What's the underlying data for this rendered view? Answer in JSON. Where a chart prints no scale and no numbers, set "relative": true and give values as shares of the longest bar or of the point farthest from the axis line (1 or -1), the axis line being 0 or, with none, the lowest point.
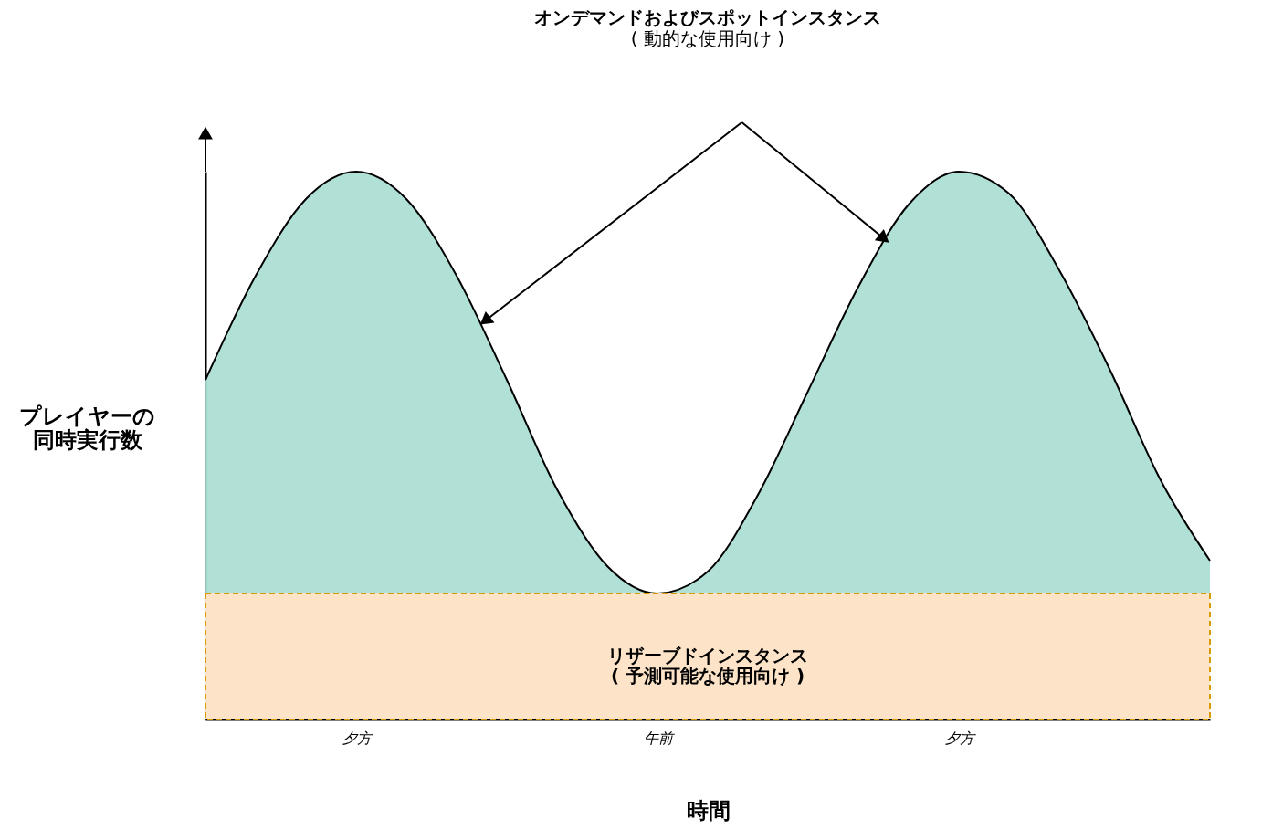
{
  "chart_data": {
    "type": "area",
    "title": "オンデマンドおよびスポットインスタンス",
    "subtitle": "( 動的な使用向け )",
    "xlabel": "時間",
    "ylabel": "プレイヤーの同時実行数",
    "relative": true,
    "categories": [
      null,
      null,
      null,
      "夕方",
      null,
      null,
      null,
      null,
      null,
      "午前",
      null,
      null,
      null,
      null,
      null,
      "夕方",
      null,
      null,
      null,
      null,
      null
    ],
    "series": [
      {
        "color": "#a8ddd2",
        "values": [
          0.62,
          0.81,
          0.95,
          1.0,
          0.95,
          0.81,
          0.62,
          0.42,
          0.28,
          0.23,
          0.27,
          0.41,
          0.6,
          0.79,
          0.94,
          1.0,
          0.96,
          0.82,
          0.64,
          0.44,
          0.29
        ]
      }
    ],
    "bands": [
      {
        "axis": "y",
        "from": 0,
        "to": 0.23,
        "label": "リザーブドインスタンス\n( 予測可能な使用向け )",
        "color": "#fde4c8"
      }
    ]
  }
}
